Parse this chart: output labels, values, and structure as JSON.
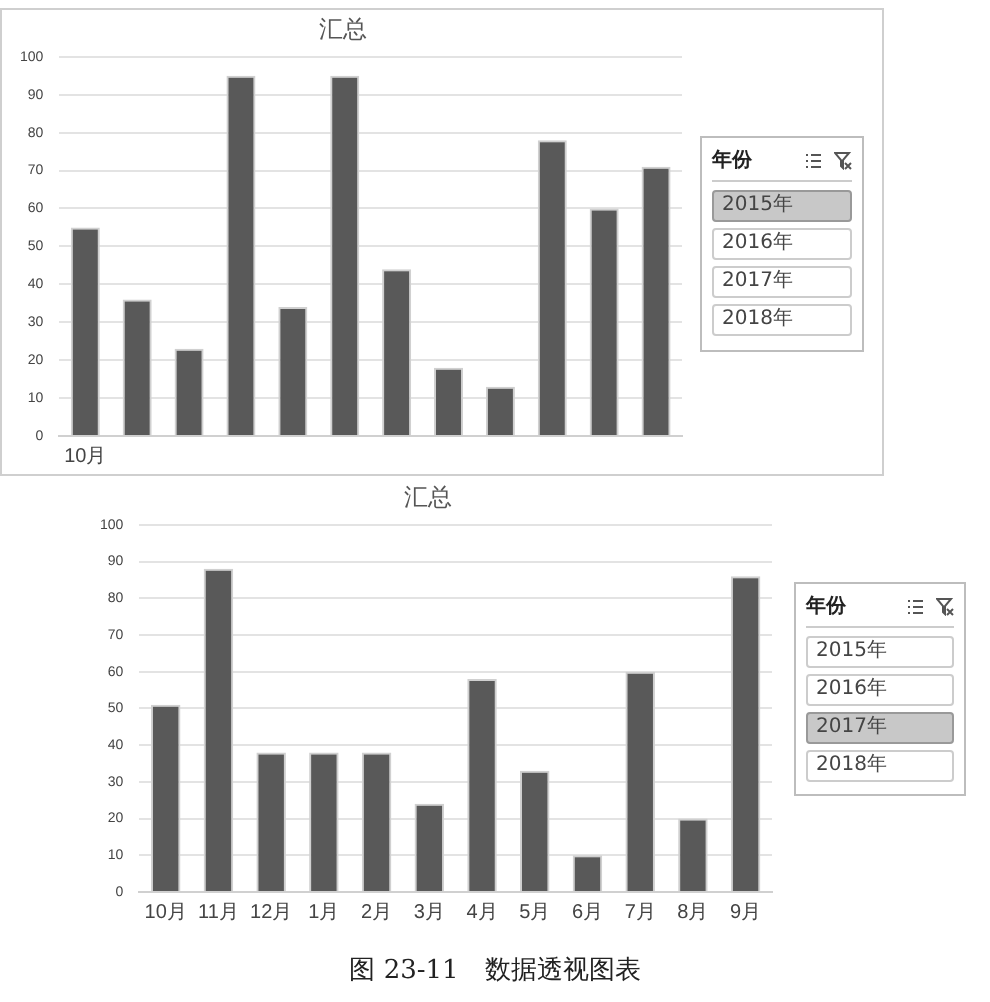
{
  "chart_data": [
    {
      "type": "bar",
      "title": "汇总",
      "categories": [
        "10月",
        null,
        null,
        null,
        null,
        null,
        null,
        null,
        null,
        null,
        null,
        null
      ],
      "values": [
        55,
        36,
        23,
        95,
        34,
        95,
        44,
        18,
        13,
        78,
        60,
        71
      ],
      "color": "#595959",
      "ylim": [
        0,
        100
      ],
      "yticks": [
        0,
        10,
        20,
        30,
        40,
        50,
        60,
        70,
        80,
        90,
        100
      ],
      "grid": "y",
      "annotations": [
        "年份",
        "2015年",
        "2016年",
        "2017年",
        "2018年"
      ]
    },
    {
      "type": "bar",
      "title": "汇总",
      "categories": [
        "10月",
        "11月",
        "12月",
        "1月",
        "2月",
        "3月",
        "4月",
        "5月",
        "6月",
        "7月",
        "8月",
        "9月"
      ],
      "values": [
        51,
        88,
        38,
        38,
        38,
        24,
        58,
        33,
        10,
        60,
        20,
        86
      ],
      "color": "#595959",
      "ylim": [
        0,
        100
      ],
      "yticks": [
        0,
        10,
        20,
        30,
        40,
        50,
        60,
        70,
        80,
        90,
        100
      ],
      "grid": "y",
      "annotations": [
        "年份",
        "2015年",
        "2016年",
        "2017年",
        "2018年",
        "图 23-11　数据透视图表"
      ]
    }
  ]
}
